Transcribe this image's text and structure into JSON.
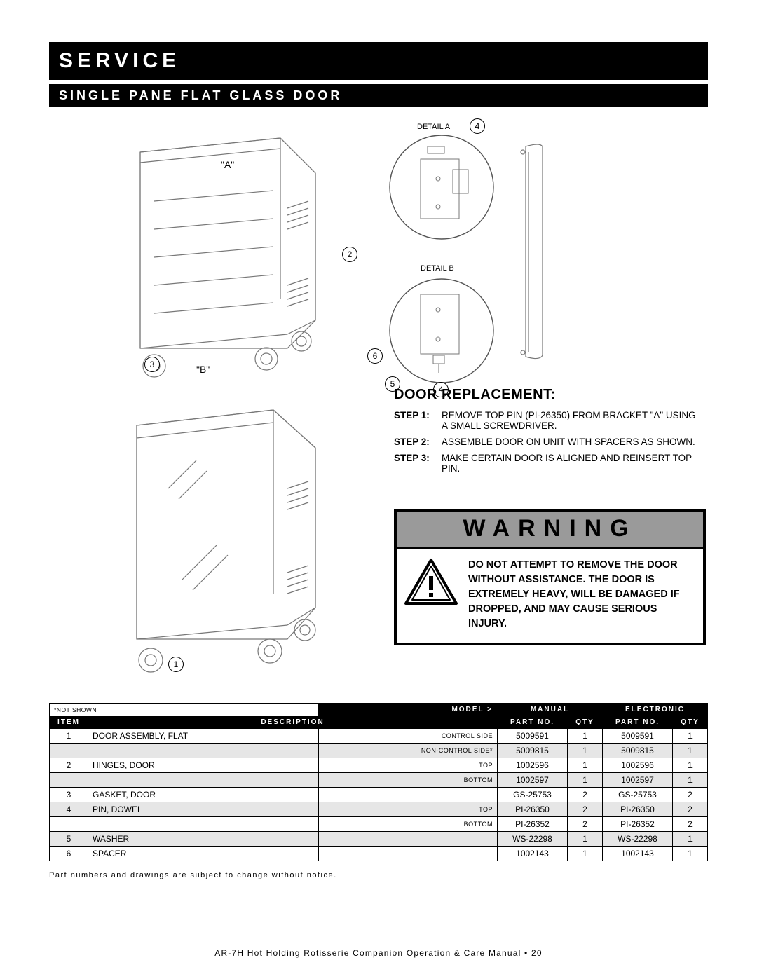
{
  "banners": {
    "primary": "SERVICE",
    "secondary": "SINGLE PANE FLAT GLASS DOOR"
  },
  "callouts": {
    "label_A": "\"A\"",
    "label_B": "\"B\"",
    "detail_a": "DETAIL A",
    "detail_b": "DETAIL B",
    "n1": "1",
    "n2": "2",
    "n3": "3",
    "n4": "4",
    "n5": "5",
    "n6": "6",
    "n4b": "4"
  },
  "instructions": {
    "title": "DOOR REPLACEMENT:",
    "step1_label": "STEP 1:",
    "step1_text": "REMOVE TOP PIN (PI-26350) FROM BRACKET \"A\" USING A SMALL SCREWDRIVER.",
    "step2_label": "STEP 2:",
    "step2_text": "ASSEMBLE DOOR ON UNIT WITH SPACERS AS SHOWN.",
    "step3_label": "STEP 3:",
    "step3_text": "MAKE CERTAIN DOOR IS ALIGNED AND REINSERT TOP PIN."
  },
  "warning": {
    "head": "WARNING",
    "text": "DO NOT ATTEMPT TO REMOVE THE DOOR WITHOUT ASSISTANCE. THE DOOR IS EXTREMELY HEAVY, WILL BE DAMAGED IF DROPPED, AND MAY CAUSE SERIOUS INJURY."
  },
  "table": {
    "not_shown_note": "*NOT SHOWN",
    "model_hdr": "MODEL >",
    "manual_hdr": "MANUAL",
    "electronic_hdr": "ELECTRONIC",
    "item_hdr": "ITEM",
    "desc_hdr": "DESCRIPTION",
    "part_hdr": "PART NO.",
    "qty_hdr": "QTY",
    "rows": [
      {
        "shade": false,
        "item": "1",
        "desc_left": "DOOR ASSEMBLY, FLAT",
        "desc_right": "CONTROL SIDE",
        "m_part": "5009591",
        "m_qty": "1",
        "e_part": "5009591",
        "e_qty": "1"
      },
      {
        "shade": true,
        "item": "",
        "desc_left": "",
        "desc_right": "NON-CONTROL SIDE*",
        "m_part": "5009815",
        "m_qty": "1",
        "e_part": "5009815",
        "e_qty": "1"
      },
      {
        "shade": false,
        "item": "2",
        "desc_left": "HINGES, DOOR",
        "desc_right": "TOP",
        "m_part": "1002596",
        "m_qty": "1",
        "e_part": "1002596",
        "e_qty": "1"
      },
      {
        "shade": true,
        "item": "",
        "desc_left": "",
        "desc_right": "BOTTOM",
        "m_part": "1002597",
        "m_qty": "1",
        "e_part": "1002597",
        "e_qty": "1"
      },
      {
        "shade": false,
        "item": "3",
        "desc_left": "GASKET, DOOR",
        "desc_right": "",
        "m_part": "GS-25753",
        "m_qty": "2",
        "e_part": "GS-25753",
        "e_qty": "2"
      },
      {
        "shade": true,
        "item": "4",
        "desc_left": "PIN, DOWEL",
        "desc_right": "TOP",
        "m_part": "PI-26350",
        "m_qty": "2",
        "e_part": "PI-26350",
        "e_qty": "2"
      },
      {
        "shade": false,
        "item": "",
        "desc_left": "",
        "desc_right": "BOTTOM",
        "m_part": "PI-26352",
        "m_qty": "2",
        "e_part": "PI-26352",
        "e_qty": "2"
      },
      {
        "shade": true,
        "item": "5",
        "desc_left": "WASHER",
        "desc_right": "",
        "m_part": "WS-22298",
        "m_qty": "1",
        "e_part": "WS-22298",
        "e_qty": "1"
      },
      {
        "shade": false,
        "item": "6",
        "desc_left": "SPACER",
        "desc_right": "",
        "m_part": "1002143",
        "m_qty": "1",
        "e_part": "1002143",
        "e_qty": "1"
      }
    ]
  },
  "foot_note": "Part numbers and drawings are subject to change without notice.",
  "footer": "AR-7H Hot Holding Rotisserie Companion Operation & Care Manual • 20"
}
